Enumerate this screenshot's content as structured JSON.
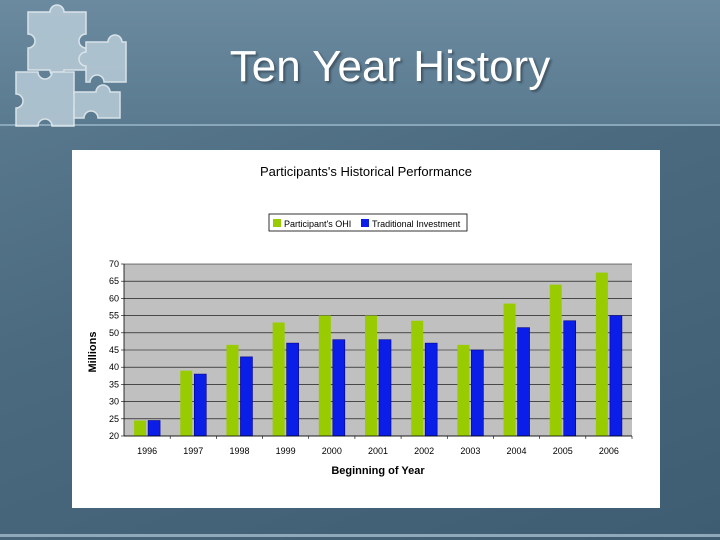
{
  "slide": {
    "title": "Ten Year History"
  },
  "colors": {
    "participant": "#99cc00",
    "traditional": "#0a1ee8",
    "plot_bg": "#c0c0c0",
    "panel_bg": "#ffffff"
  },
  "decor": {
    "icon": "puzzle-pieces-icon"
  },
  "chart_data": {
    "type": "bar",
    "title": "Participants's Historical Performance",
    "xlabel": "Beginning of Year",
    "ylabel": "Millions",
    "ylim": [
      20,
      70
    ],
    "yticks": [
      "70",
      "65",
      "60",
      "55",
      "50",
      "45",
      "40",
      "35",
      "30",
      "25",
      "20"
    ],
    "categories": [
      "1996",
      "1997",
      "1998",
      "1999",
      "2000",
      "2001",
      "2002",
      "2003",
      "2004",
      "2005",
      "2006"
    ],
    "legend_position": "top-center",
    "grid": true,
    "series": [
      {
        "name": "Participant's OHI",
        "values": [
          24.5,
          39.0,
          46.5,
          53.0,
          55.0,
          55.0,
          53.5,
          46.5,
          58.5,
          64.0,
          67.5
        ]
      },
      {
        "name": "Traditional Investment",
        "values": [
          24.5,
          38.0,
          43.0,
          47.0,
          48.0,
          48.0,
          47.0,
          45.0,
          51.5,
          53.5,
          55.0
        ]
      }
    ]
  }
}
